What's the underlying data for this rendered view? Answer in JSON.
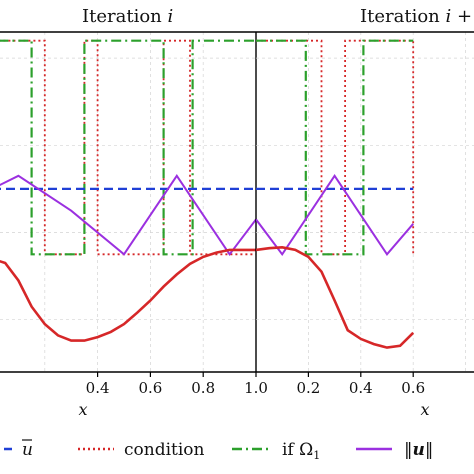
{
  "chart_data": {
    "type": "line",
    "panels": [
      {
        "title": "Iteration ",
        "title_var": "i",
        "xlabel": "x",
        "x_ticks": [
          "0.4",
          "0.6",
          "0.8",
          "1.0"
        ],
        "xlim": [
          0.0,
          1.0
        ],
        "ylim": [
          -2.6,
          1.3
        ],
        "series": [
          {
            "key": "condition",
            "color": "#d62728",
            "x": [
              0.0,
              0.0,
              0.2,
              0.2,
              0.35,
              0.35,
              0.4,
              0.4,
              0.65,
              0.65,
              0.75,
              0.75,
              1.0
            ],
            "y": [
              -1.25,
              1.2,
              1.2,
              -1.25,
              -1.25,
              1.2,
              1.2,
              -1.25,
              -1.25,
              1.2,
              1.2,
              -1.25,
              -1.25
            ]
          },
          {
            "key": "if_omega",
            "color": "#2ca02c",
            "x": [
              0.0,
              0.0,
              0.15,
              0.15,
              0.35,
              0.35,
              0.65,
              0.65,
              0.76,
              0.76,
              1.0
            ],
            "y": [
              -1.25,
              1.2,
              1.2,
              -1.25,
              -1.25,
              1.2,
              1.2,
              -1.25,
              -1.25,
              1.2,
              1.2
            ]
          },
          {
            "key": "ubar",
            "color": "#1f3fd6",
            "x": [
              0.0,
              1.0
            ],
            "y": [
              -0.5,
              -0.5
            ]
          },
          {
            "key": "norm_u",
            "color": "#9b30e0",
            "x": [
              0.0,
              0.1,
              0.3,
              0.5,
              0.7,
              0.9,
              1.0
            ],
            "y": [
              -0.5,
              -0.35,
              -0.75,
              -1.25,
              -0.35,
              -1.25,
              -0.85
            ]
          },
          {
            "key": "solution",
            "color": "#d62728",
            "x": [
              0.0,
              0.05,
              0.1,
              0.15,
              0.2,
              0.25,
              0.3,
              0.35,
              0.4,
              0.45,
              0.5,
              0.55,
              0.6,
              0.65,
              0.7,
              0.75,
              0.8,
              0.85,
              0.9,
              0.95,
              1.0
            ],
            "y": [
              -1.3,
              -1.35,
              -1.55,
              -1.85,
              -2.05,
              -2.18,
              -2.24,
              -2.24,
              -2.2,
              -2.14,
              -2.05,
              -1.92,
              -1.78,
              -1.62,
              -1.48,
              -1.36,
              -1.28,
              -1.23,
              -1.2,
              -1.2,
              -1.2
            ]
          }
        ]
      },
      {
        "title": "Iteration ",
        "title_var": "i",
        "title_suffix": " +",
        "xlabel": "x",
        "x_ticks": [
          "0.2",
          "0.4",
          "0.6"
        ],
        "xlim": [
          0.0,
          1.0
        ],
        "ylim": [
          -2.6,
          1.3
        ],
        "series": [
          {
            "key": "condition",
            "color": "#d62728",
            "x": [
              0.0,
              0.25,
              0.25,
              0.34,
              0.34,
              0.6,
              0.6
            ],
            "y": [
              1.2,
              1.2,
              -1.25,
              -1.25,
              1.2,
              1.2,
              -1.25
            ]
          },
          {
            "key": "if_omega",
            "color": "#2ca02c",
            "x": [
              0.0,
              0.19,
              0.19,
              0.41,
              0.41,
              0.6
            ],
            "y": [
              1.2,
              1.2,
              -1.25,
              -1.25,
              1.2,
              1.2
            ]
          },
          {
            "key": "ubar",
            "color": "#1f3fd6",
            "x": [
              0.0,
              0.6
            ],
            "y": [
              -0.5,
              -0.5
            ]
          },
          {
            "key": "norm_u",
            "color": "#9b30e0",
            "x": [
              0.0,
              0.1,
              0.3,
              0.5,
              0.6
            ],
            "y": [
              -0.85,
              -1.25,
              -0.35,
              -1.25,
              -0.9
            ]
          },
          {
            "key": "solution",
            "color": "#d62728",
            "x": [
              0.0,
              0.05,
              0.1,
              0.15,
              0.2,
              0.25,
              0.3,
              0.35,
              0.4,
              0.45,
              0.5,
              0.55,
              0.6
            ],
            "y": [
              -1.2,
              -1.18,
              -1.17,
              -1.2,
              -1.28,
              -1.45,
              -1.78,
              -2.12,
              -2.22,
              -2.28,
              -2.32,
              -2.3,
              -2.15
            ]
          }
        ]
      }
    ],
    "legend": {
      "placement": "bottom",
      "entries": [
        {
          "key": "ubar",
          "label": "u",
          "math": true,
          "overline": true,
          "color": "#1f3fd6",
          "style": "dashed"
        },
        {
          "key": "condition",
          "label": "condition",
          "math": false,
          "color": "#d62728",
          "style": "dotted"
        },
        {
          "key": "if_omega",
          "label": "if Ω",
          "sub": "1",
          "math": false,
          "color": "#2ca02c",
          "style": "dashdot"
        },
        {
          "key": "norm_u",
          "label": "‖u‖",
          "math": true,
          "bold": true,
          "color": "#9b30e0",
          "style": "solid"
        }
      ]
    },
    "grid": true
  }
}
